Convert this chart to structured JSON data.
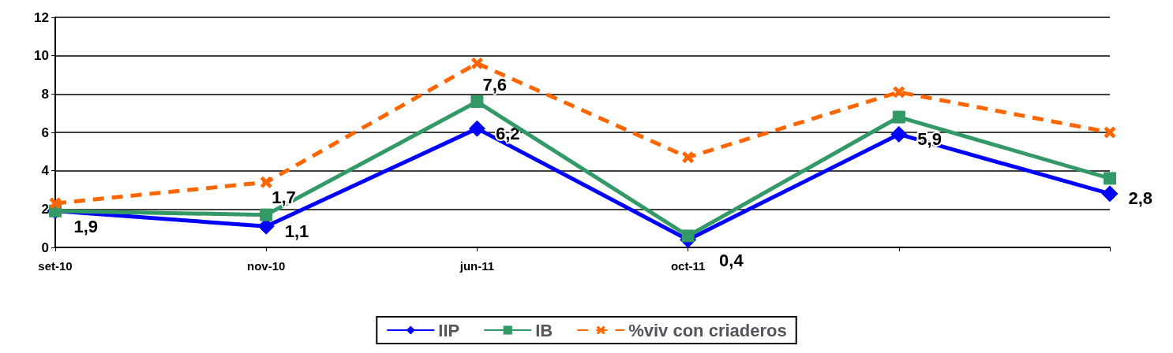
{
  "chart_data": {
    "type": "line",
    "categories": [
      "set-10",
      "nov-10",
      "jun-11",
      "oct-11",
      null,
      null
    ],
    "series": [
      {
        "name": "IIP",
        "color": "#0000ff",
        "marker": "diamond",
        "line_style": "solid",
        "values": [
          1.9,
          1.1,
          6.2,
          0.4,
          5.9,
          2.8
        ],
        "value_labels": [
          "1,9",
          "1,1",
          "6,2",
          "0,4",
          "5,9",
          "2,8"
        ]
      },
      {
        "name": "IB",
        "color": "#339966",
        "marker": "square",
        "line_style": "solid",
        "values": [
          1.9,
          1.7,
          7.6,
          0.6,
          6.8,
          3.6
        ],
        "value_labels": [
          null,
          "1,7",
          "7,6",
          null,
          null,
          null
        ]
      },
      {
        "name": "%viv con criaderos",
        "color": "#ff6600",
        "marker": "cross",
        "line_style": "dashed",
        "values": [
          2.3,
          3.4,
          9.6,
          4.7,
          8.1,
          6.0
        ]
      }
    ],
    "ylim": [
      0,
      12
    ],
    "yticks": [
      0,
      2,
      4,
      6,
      8,
      10,
      12
    ],
    "grid": "y",
    "legend": "bottom"
  }
}
